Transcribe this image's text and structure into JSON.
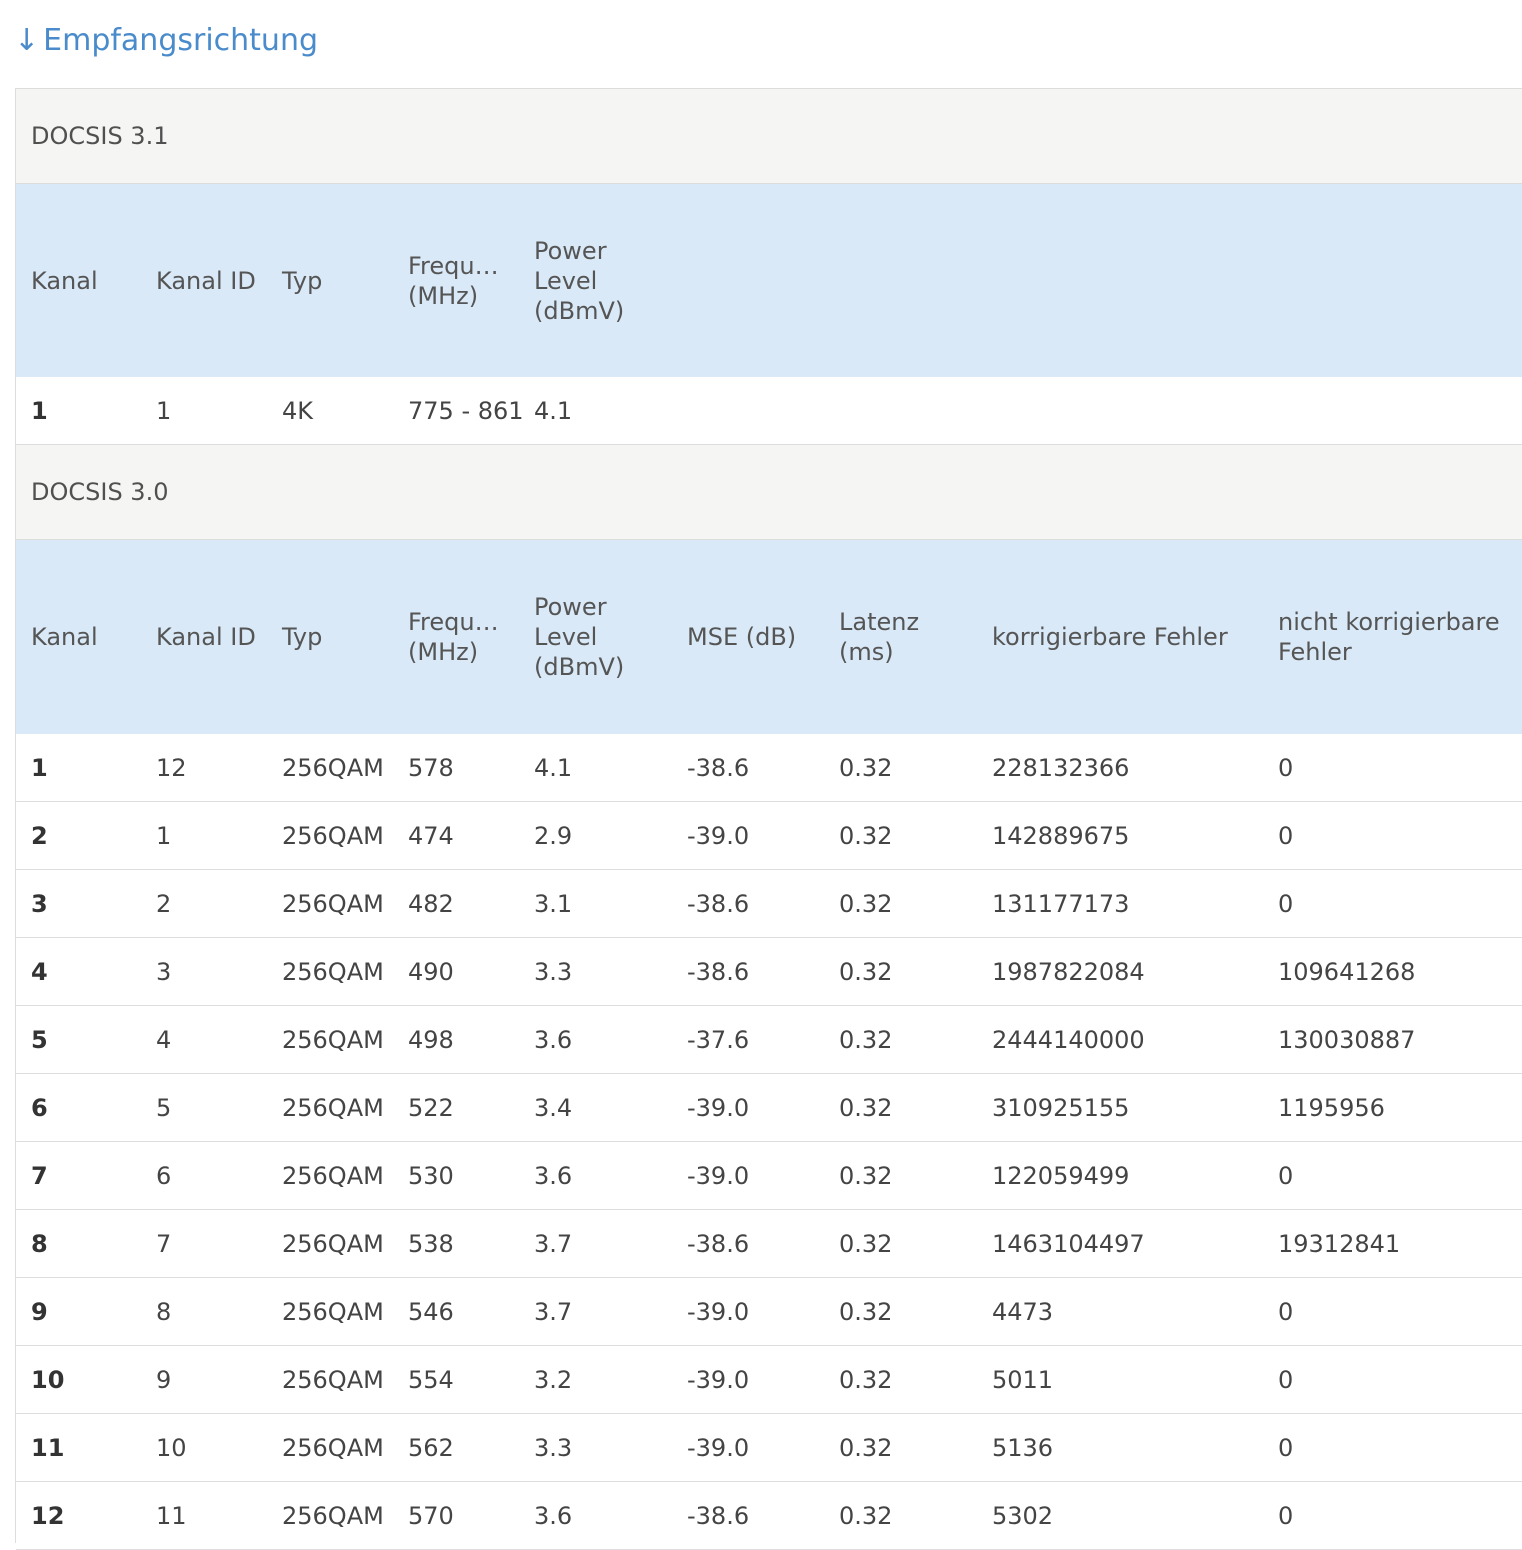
{
  "heading": {
    "arrow": "↓",
    "label": "Empfangsrichtung"
  },
  "docsis31": {
    "title": "DOCSIS 3.1",
    "headers": {
      "kanal": "Kanal",
      "kanal_id": "Kanal ID",
      "typ": "Typ",
      "freq_line1": "Frequenz",
      "freq_line2": "(MHz)",
      "power_line1": "Power",
      "power_line2": "Level",
      "power_line3": "(dBmV)"
    },
    "rows": [
      {
        "kanal": "1",
        "kanal_id": "1",
        "typ": "4K",
        "freq": "775 - 861",
        "power": "4.1"
      }
    ]
  },
  "docsis30": {
    "title": "DOCSIS 3.0",
    "headers": {
      "kanal": "Kanal",
      "kanal_id": "Kanal ID",
      "typ": "Typ",
      "freq_line1": "Frequenz",
      "freq_line2": "(MHz)",
      "power_line1": "Power",
      "power_line2": "Level",
      "power_line3": "(dBmV)",
      "mse": "MSE (dB)",
      "latenz_line1": "Latenz",
      "latenz_line2": "(ms)",
      "korr": "korrigierbare Fehler",
      "nkorr_line1": "nicht korrigierbare",
      "nkorr_line2": "Fehler"
    },
    "rows": [
      {
        "kanal": "1",
        "kanal_id": "12",
        "typ": "256QAM",
        "freq": "578",
        "power": "4.1",
        "mse": "-38.6",
        "latenz": "0.32",
        "korr": "228132366",
        "nkorr": "0"
      },
      {
        "kanal": "2",
        "kanal_id": "1",
        "typ": "256QAM",
        "freq": "474",
        "power": "2.9",
        "mse": "-39.0",
        "latenz": "0.32",
        "korr": "142889675",
        "nkorr": "0"
      },
      {
        "kanal": "3",
        "kanal_id": "2",
        "typ": "256QAM",
        "freq": "482",
        "power": "3.1",
        "mse": "-38.6",
        "latenz": "0.32",
        "korr": "131177173",
        "nkorr": "0"
      },
      {
        "kanal": "4",
        "kanal_id": "3",
        "typ": "256QAM",
        "freq": "490",
        "power": "3.3",
        "mse": "-38.6",
        "latenz": "0.32",
        "korr": "1987822084",
        "nkorr": "109641268"
      },
      {
        "kanal": "5",
        "kanal_id": "4",
        "typ": "256QAM",
        "freq": "498",
        "power": "3.6",
        "mse": "-37.6",
        "latenz": "0.32",
        "korr": "2444140000",
        "nkorr": "130030887"
      },
      {
        "kanal": "6",
        "kanal_id": "5",
        "typ": "256QAM",
        "freq": "522",
        "power": "3.4",
        "mse": "-39.0",
        "latenz": "0.32",
        "korr": "310925155",
        "nkorr": "1195956"
      },
      {
        "kanal": "7",
        "kanal_id": "6",
        "typ": "256QAM",
        "freq": "530",
        "power": "3.6",
        "mse": "-39.0",
        "latenz": "0.32",
        "korr": "122059499",
        "nkorr": "0"
      },
      {
        "kanal": "8",
        "kanal_id": "7",
        "typ": "256QAM",
        "freq": "538",
        "power": "3.7",
        "mse": "-38.6",
        "latenz": "0.32",
        "korr": "1463104497",
        "nkorr": "19312841"
      },
      {
        "kanal": "9",
        "kanal_id": "8",
        "typ": "256QAM",
        "freq": "546",
        "power": "3.7",
        "mse": "-39.0",
        "latenz": "0.32",
        "korr": "4473",
        "nkorr": "0"
      },
      {
        "kanal": "10",
        "kanal_id": "9",
        "typ": "256QAM",
        "freq": "554",
        "power": "3.2",
        "mse": "-39.0",
        "latenz": "0.32",
        "korr": "5011",
        "nkorr": "0"
      },
      {
        "kanal": "11",
        "kanal_id": "10",
        "typ": "256QAM",
        "freq": "562",
        "power": "3.3",
        "mse": "-39.0",
        "latenz": "0.32",
        "korr": "5136",
        "nkorr": "0"
      },
      {
        "kanal": "12",
        "kanal_id": "11",
        "typ": "256QAM",
        "freq": "570",
        "power": "3.6",
        "mse": "-38.6",
        "latenz": "0.32",
        "korr": "5302",
        "nkorr": "0"
      }
    ]
  }
}
